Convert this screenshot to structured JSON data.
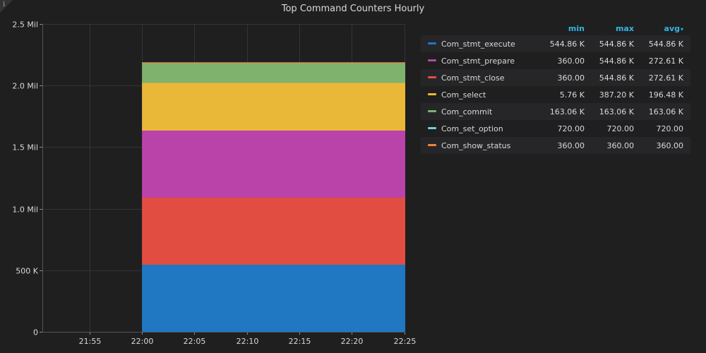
{
  "panel": {
    "title": "Top Command Counters Hourly",
    "info_icon": "info-icon"
  },
  "chart_data": {
    "type": "area",
    "stacked": true,
    "title": "Top Command Counters Hourly",
    "x_ticks": [
      "21:55",
      "22:00",
      "22:05",
      "22:10",
      "22:15",
      "22:20",
      "22:25"
    ],
    "x_tick_minutes": [
      -5,
      0,
      5,
      10,
      15,
      20,
      25
    ],
    "x_range_minutes": [
      -9.5,
      25.1
    ],
    "data_x_range_minutes": [
      0,
      25.1
    ],
    "y_ticks": [
      {
        "value": 0,
        "label": "0"
      },
      {
        "value": 500000,
        "label": "500 K"
      },
      {
        "value": 1000000,
        "label": "1.0 Mil"
      },
      {
        "value": 1500000,
        "label": "1.5 Mil"
      },
      {
        "value": 2000000,
        "label": "2.0 Mil"
      },
      {
        "value": 2500000,
        "label": "2.5 Mil"
      }
    ],
    "ylim": [
      0,
      2500000
    ],
    "grid": true,
    "legend_position": "right",
    "series": [
      {
        "name": "Com_stmt_execute",
        "color": "#1f78c1",
        "value": 544860
      },
      {
        "name": "Com_stmt_close",
        "color": "#e24d42",
        "value": 544860
      },
      {
        "name": "Com_stmt_prepare",
        "color": "#ba43a9",
        "value": 544860
      },
      {
        "name": "Com_select",
        "color": "#eab839",
        "value": 387200
      },
      {
        "name": "Com_commit",
        "color": "#7eb26d",
        "value": 163060
      },
      {
        "name": "Com_set_option",
        "color": "#6ed0e0",
        "value": 720
      },
      {
        "name": "Com_show_status",
        "color": "#ef843c",
        "value": 360
      }
    ]
  },
  "legend": {
    "headers": {
      "min": "min",
      "max": "max",
      "avg": "avg"
    },
    "sort_indicator": "▾",
    "rows": [
      {
        "name": "Com_stmt_execute",
        "color": "#1f78c1",
        "min": "544.86 K",
        "max": "544.86 K",
        "avg": "544.86 K"
      },
      {
        "name": "Com_stmt_prepare",
        "color": "#ba43a9",
        "min": "360.00",
        "max": "544.86 K",
        "avg": "272.61 K"
      },
      {
        "name": "Com_stmt_close",
        "color": "#e24d42",
        "min": "360.00",
        "max": "544.86 K",
        "avg": "272.61 K"
      },
      {
        "name": "Com_select",
        "color": "#eab839",
        "min": "5.76 K",
        "max": "387.20 K",
        "avg": "196.48 K"
      },
      {
        "name": "Com_commit",
        "color": "#7eb26d",
        "min": "163.06 K",
        "max": "163.06 K",
        "avg": "163.06 K"
      },
      {
        "name": "Com_set_option",
        "color": "#6ed0e0",
        "min": "720.00",
        "max": "720.00",
        "avg": "720.00"
      },
      {
        "name": "Com_show_status",
        "color": "#ef843c",
        "min": "360.00",
        "max": "360.00",
        "avg": "360.00"
      }
    ]
  }
}
